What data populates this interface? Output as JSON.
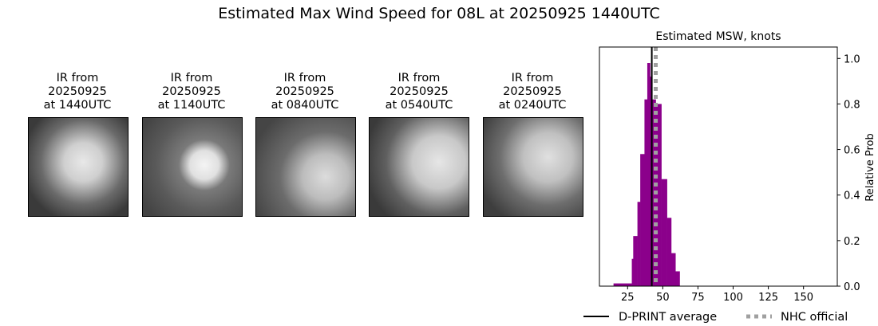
{
  "title": "Estimated Max Wind Speed for 08L at 20250925 1440UTC",
  "panels": [
    {
      "line1": "IR from",
      "line2": "20250925",
      "line3": "at 1440UTC"
    },
    {
      "line1": "IR from",
      "line2": "20250925",
      "line3": "at 1140UTC"
    },
    {
      "line1": "IR from",
      "line2": "20250925",
      "line3": "at 0840UTC"
    },
    {
      "line1": "IR from",
      "line2": "20250925",
      "line3": "at 0540UTC"
    },
    {
      "line1": "IR from",
      "line2": "20250925",
      "line3": "at 0240UTC"
    }
  ],
  "chart_data": {
    "type": "bar",
    "title": "Estimated MSW, knots",
    "xlabel": "",
    "ylabel": "Relative Prob",
    "xlim": [
      5,
      174
    ],
    "ylim": [
      0,
      1.05
    ],
    "xticks": [
      25,
      50,
      75,
      100,
      125,
      150
    ],
    "yticks": [
      0.0,
      0.2,
      0.4,
      0.6,
      0.8,
      1.0
    ],
    "bar_color": "#8b008b",
    "bins": [
      {
        "from": 15,
        "to": 28,
        "value": 0.012
      },
      {
        "from": 28,
        "to": 29,
        "value": 0.12
      },
      {
        "from": 29,
        "to": 32,
        "value": 0.22
      },
      {
        "from": 32,
        "to": 34,
        "value": 0.37
      },
      {
        "from": 34,
        "to": 37,
        "value": 0.58
      },
      {
        "from": 37,
        "to": 39,
        "value": 0.82
      },
      {
        "from": 39,
        "to": 41,
        "value": 0.98
      },
      {
        "from": 41,
        "to": 42,
        "value": 0.92
      },
      {
        "from": 42,
        "to": 45,
        "value": 0.82
      },
      {
        "from": 45,
        "to": 49,
        "value": 0.8
      },
      {
        "from": 49,
        "to": 53,
        "value": 0.47
      },
      {
        "from": 53,
        "to": 56,
        "value": 0.3
      },
      {
        "from": 56,
        "to": 59,
        "value": 0.145
      },
      {
        "from": 59,
        "to": 62,
        "value": 0.065
      }
    ],
    "dprint_average": 42.2,
    "nhc_official": 45,
    "legend": [
      {
        "label": "D-PRINT average",
        "color": "#000000",
        "style": "solid"
      },
      {
        "label": "NHC official",
        "color": "#a0a0a0",
        "style": "dotted"
      }
    ],
    "legend_position": "bottom"
  }
}
